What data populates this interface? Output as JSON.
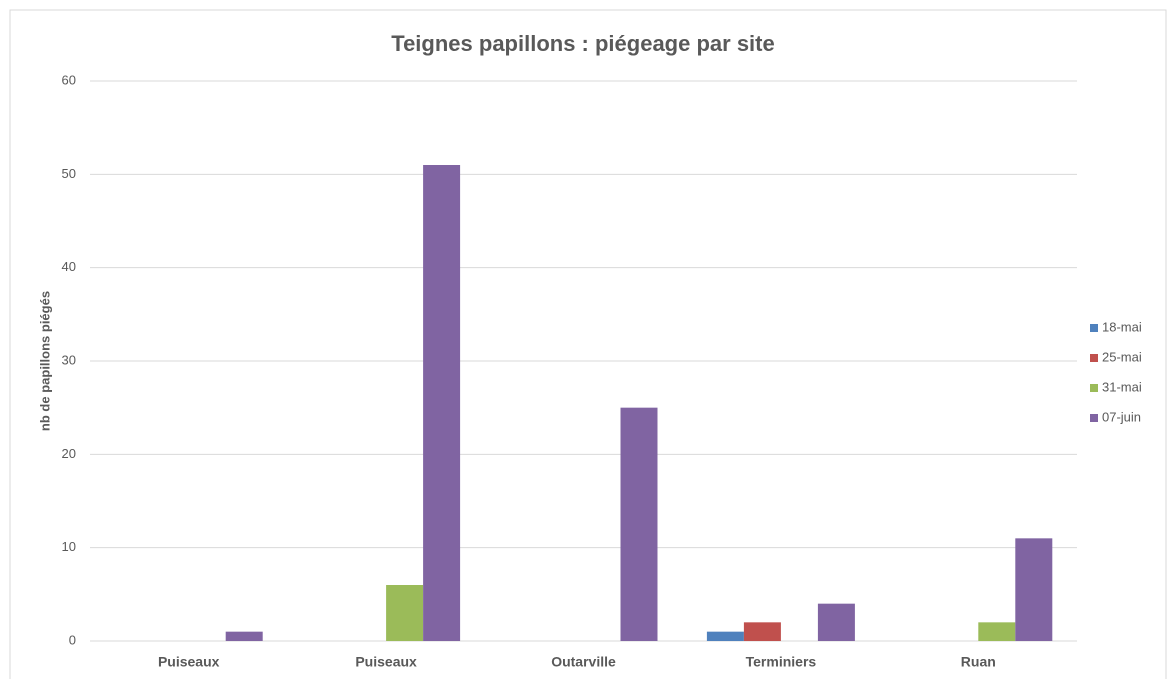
{
  "chart_data": {
    "type": "bar",
    "title": "Teignes papillons : piégeage par site",
    "y_label": "nb de papillons piégés",
    "categories": [
      "Puiseaux",
      "Puiseaux",
      "Outarville",
      "Terminiers",
      "Ruan"
    ],
    "series": [
      {
        "name": "18-mai",
        "color": "#4f81bd",
        "values": [
          0,
          0,
          0,
          1,
          0
        ]
      },
      {
        "name": "25-mai",
        "color": "#c0504d",
        "values": [
          0,
          0,
          0,
          2,
          0
        ]
      },
      {
        "name": "31-mai",
        "color": "#9bbb59",
        "values": [
          0,
          6,
          0,
          0,
          2
        ]
      },
      {
        "name": "07-juin",
        "color": "#8064a2",
        "values": [
          1,
          51,
          25,
          4,
          11
        ]
      }
    ],
    "ylim": [
      0,
      60
    ],
    "yticks": [
      0,
      10,
      20,
      30,
      40,
      50,
      60
    ],
    "grid": true,
    "legend": "right"
  }
}
